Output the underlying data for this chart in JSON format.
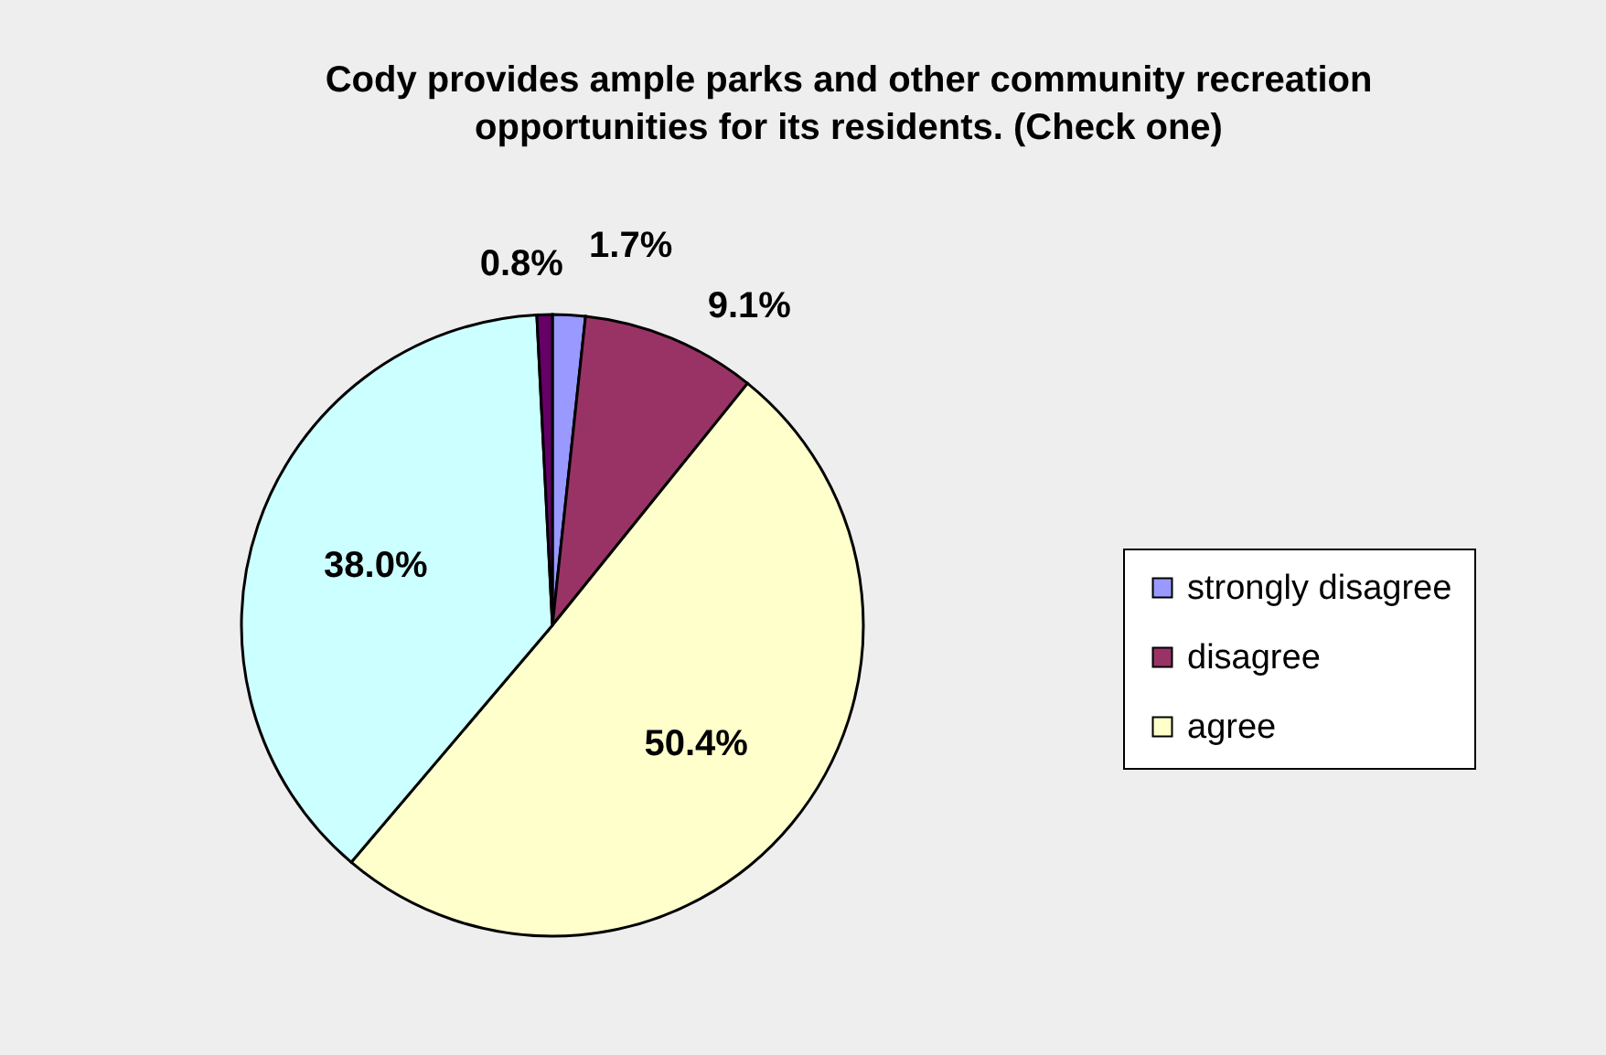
{
  "chart_data": {
    "type": "pie",
    "title": "Cody provides ample parks and other community recreation opportunities for its residents. (Check one)",
    "categories": [
      "strongly disagree",
      "disagree",
      "agree",
      null,
      null
    ],
    "values": [
      1.7,
      9.1,
      50.4,
      38.0,
      0.8
    ],
    "colors": [
      "#9999ff",
      "#993366",
      "#ffffcc",
      "#ccffff",
      "#660066"
    ],
    "value_labels": [
      "1.7%",
      "9.1%",
      "50.4%",
      "38.0%",
      "0.8%"
    ],
    "legend": "right"
  }
}
